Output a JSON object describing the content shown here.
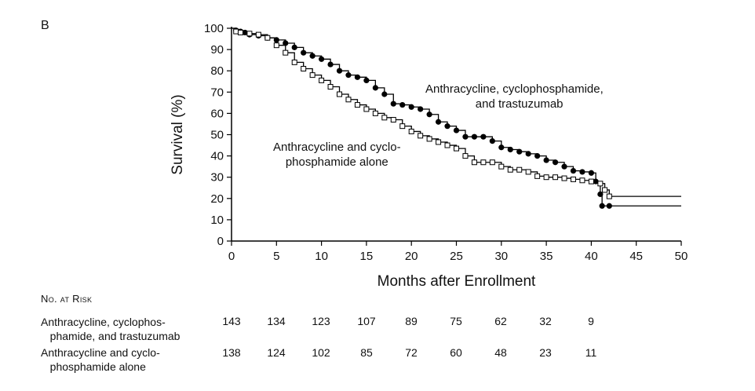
{
  "panel_label": "B",
  "chart_data": {
    "type": "line",
    "xlabel": "Months after Enrollment",
    "ylabel": "Survival (%)",
    "xlim": [
      0,
      50
    ],
    "ylim": [
      0,
      100
    ],
    "xticks": [
      0,
      5,
      10,
      15,
      20,
      25,
      30,
      35,
      40,
      45,
      50
    ],
    "yticks": [
      0,
      10,
      20,
      30,
      40,
      50,
      60,
      70,
      80,
      90,
      100
    ],
    "grid": false,
    "series": [
      {
        "name": "Anthracycline, cyclophosphamide, and trastuzumab",
        "color": "#000000",
        "marker": "filled-circle",
        "x": [
          0,
          0.5,
          1,
          1.5,
          2,
          3,
          4,
          5,
          6,
          7,
          8,
          9,
          10,
          11,
          12,
          13,
          14,
          15,
          16,
          17,
          18,
          19,
          20,
          21,
          22,
          23,
          24,
          25,
          26,
          27,
          28,
          29,
          30,
          31,
          32,
          33,
          34,
          35,
          36,
          37,
          38,
          39,
          40,
          40.5,
          41,
          41.2,
          42,
          50
        ],
        "y": [
          100,
          99,
          98.5,
          98,
          97,
          96.5,
          95.5,
          94.5,
          93,
          91,
          88.5,
          87,
          85.5,
          83,
          80,
          78,
          77,
          75.5,
          72,
          69,
          64.5,
          64,
          63,
          62,
          59.5,
          56,
          54,
          52,
          49,
          49,
          49,
          47,
          44,
          43,
          42,
          41,
          40,
          38,
          37,
          35,
          33,
          32.5,
          32,
          28,
          22,
          16.5,
          16.5,
          16.5
        ]
      },
      {
        "name": "Anthracycline and cyclophosphamide alone",
        "color": "#000000",
        "marker": "open-square",
        "x": [
          0,
          0.5,
          1,
          2,
          3,
          4,
          5,
          6,
          7,
          8,
          9,
          10,
          11,
          12,
          13,
          14,
          15,
          16,
          17,
          18,
          19,
          20,
          21,
          22,
          23,
          24,
          25,
          26,
          27,
          28,
          29,
          30,
          31,
          32,
          33,
          34,
          35,
          36,
          37,
          38,
          39,
          40,
          41,
          41.5,
          42,
          50
        ],
        "y": [
          100,
          98.5,
          98,
          97.5,
          97,
          95.5,
          92,
          88.5,
          84,
          81,
          78,
          75.5,
          72.5,
          69,
          66.5,
          64,
          62,
          60,
          58,
          57,
          54,
          51.5,
          49.5,
          48,
          46.5,
          45,
          43.5,
          40,
          37,
          37,
          37,
          35,
          33.5,
          33.5,
          32.5,
          30.5,
          30,
          30,
          29.5,
          29,
          28.5,
          28,
          27,
          24,
          21,
          21
        ]
      }
    ],
    "annotations": [
      {
        "text": "Anthracycline, cyclophosphamide,\n   and trastuzumab",
        "series": 0
      },
      {
        "text": "Anthracycline and cyclo-\nphosphamide alone",
        "series": 1
      }
    ]
  },
  "risk_table": {
    "header": "No. at Risk",
    "rows": [
      {
        "label": "Anthracycline, cyclophos-\n   phamide, and trastuzumab",
        "values": [
          143,
          134,
          123,
          107,
          89,
          75,
          62,
          32,
          9
        ]
      },
      {
        "label": "Anthracycline and cyclo-\n   phosphamide alone",
        "values": [
          138,
          124,
          102,
          85,
          72,
          60,
          48,
          23,
          11
        ]
      }
    ]
  }
}
